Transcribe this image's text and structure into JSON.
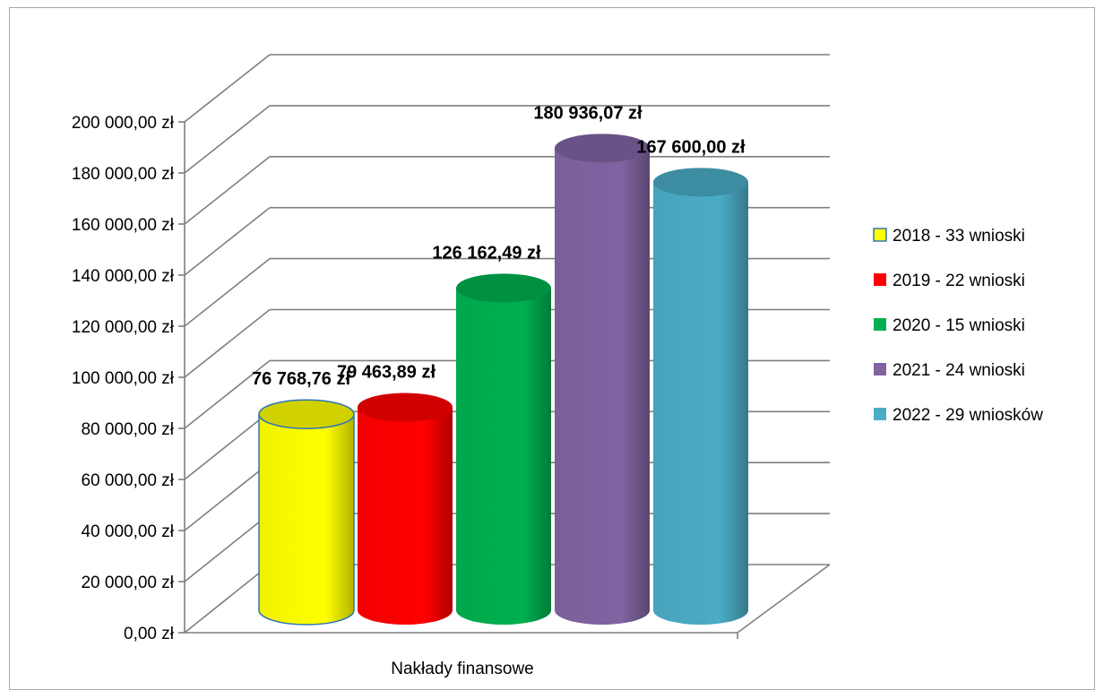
{
  "chart_data": {
    "type": "bar",
    "style": "3d-cylinder",
    "categories": [
      "Nakłady finansowe"
    ],
    "series": [
      {
        "name": "2018 - 33 wnioski",
        "value": 76768.76,
        "label": "76 768,76 zł",
        "color": "#ffff00"
      },
      {
        "name": "2019 - 22 wnioski",
        "value": 79463.89,
        "label": "79 463,89 zł",
        "color": "#ff0000"
      },
      {
        "name": "2020 - 15 wnioski",
        "value": 126162.49,
        "label": "126 162,49 zł",
        "color": "#00b050"
      },
      {
        "name": "2021 - 24 wnioski",
        "value": 180936.07,
        "label": "180 936,07 zł",
        "color": "#8064a2"
      },
      {
        "name": "2022 - 29 wniosków",
        "value": 167600.0,
        "label": "167 600,00 zł",
        "color": "#4bacc6"
      }
    ],
    "y_ticks": [
      "0,00 zł",
      "20 000,00 zł",
      "40 000,00 zł",
      "60 000,00 zł",
      "80 000,00 zł",
      "100 000,00 zł",
      "120 000,00 zł",
      "140 000,00 zł",
      "160 000,00 zł",
      "180 000,00 zł",
      "200 000,00 zł"
    ],
    "ylim": [
      0,
      200000
    ],
    "grid": true,
    "legend_position": "right"
  }
}
